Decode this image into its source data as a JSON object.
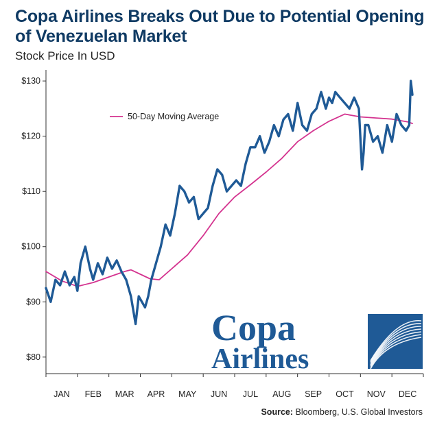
{
  "chart_data": {
    "type": "line",
    "title": "Copa Airlines Breaks Out Due to Potential Opening of Venezuelan Market",
    "subtitle": "Stock Price In USD",
    "ylim": [
      77,
      132
    ],
    "yticks": [
      80,
      90,
      100,
      110,
      120,
      130
    ],
    "ytick_labels": [
      "$80",
      "$90",
      "$100",
      "$110",
      "$120",
      "$130"
    ],
    "months": [
      "JAN",
      "FEB",
      "MAR",
      "APR",
      "MAY",
      "JUN",
      "JUL",
      "AUG",
      "SEP",
      "OCT",
      "NOV",
      "DEC"
    ],
    "legend": {
      "label": "50-Day Moving Average",
      "position": "top-left"
    },
    "series": [
      {
        "name": "",
        "role": "price",
        "color": "#1f5a96",
        "x": [
          0,
          0.15,
          0.3,
          0.45,
          0.6,
          0.75,
          0.9,
          1.0,
          1.1,
          1.25,
          1.4,
          1.5,
          1.65,
          1.8,
          1.95,
          2.1,
          2.25,
          2.4,
          2.55,
          2.7,
          2.85,
          2.95,
          3.05,
          3.15,
          3.25,
          3.35,
          3.5,
          3.65,
          3.8,
          3.95,
          4.1,
          4.25,
          4.4,
          4.55,
          4.7,
          4.85,
          5.0,
          5.15,
          5.3,
          5.45,
          5.6,
          5.75,
          5.9,
          6.05,
          6.2,
          6.35,
          6.5,
          6.65,
          6.8,
          6.95,
          7.1,
          7.25,
          7.4,
          7.55,
          7.7,
          7.85,
          8.0,
          8.15,
          8.3,
          8.45,
          8.6,
          8.75,
          8.9,
          9.0,
          9.1,
          9.2,
          9.35,
          9.5,
          9.65,
          9.8,
          9.95,
          10.05,
          10.1,
          10.15,
          10.25,
          10.4,
          10.55,
          10.7,
          10.85,
          11.0,
          11.15,
          11.3,
          11.45,
          11.55,
          11.6,
          11.65
        ],
        "y": [
          92.5,
          90,
          94,
          93,
          95.5,
          93,
          94.5,
          92,
          97,
          100,
          96,
          94,
          97,
          95,
          98,
          96,
          97.5,
          95.5,
          94,
          91,
          86,
          91,
          90,
          89,
          91,
          94,
          97,
          100,
          104,
          102,
          106,
          111,
          110,
          108,
          109,
          105,
          106,
          107,
          111,
          114,
          113,
          110,
          111,
          112,
          111,
          115,
          118,
          118,
          120,
          117,
          119,
          122,
          120,
          123,
          124,
          121,
          126,
          122,
          121,
          124,
          125,
          128,
          125,
          127,
          126,
          128,
          127,
          126,
          125,
          127,
          125,
          114,
          117,
          122,
          122,
          119,
          120,
          117,
          122,
          119,
          124,
          122,
          121,
          122,
          130,
          127.5
        ]
      },
      {
        "name": "50-Day Moving Average",
        "role": "moving-average",
        "color": "#d4338f",
        "x": [
          0,
          0.5,
          1.0,
          1.5,
          2.0,
          2.5,
          2.7,
          3.0,
          3.3,
          3.6,
          4.0,
          4.5,
          5.0,
          5.5,
          6.0,
          6.5,
          7.0,
          7.5,
          8.0,
          8.5,
          9.0,
          9.5,
          10.0,
          10.5,
          11.0,
          11.5,
          11.65
        ],
        "y": [
          95.5,
          93.8,
          92.8,
          93.5,
          94.5,
          95.5,
          95.8,
          95,
          94.2,
          94,
          96,
          98.5,
          102,
          106,
          109,
          111.2,
          113.5,
          116,
          119,
          121,
          122.7,
          124,
          123.5,
          123.3,
          123.1,
          122.6,
          122.3
        ]
      }
    ]
  },
  "source": {
    "label": "Source:",
    "text": " Bloomberg, U.S. Global Investors"
  },
  "logo": {
    "line1": "Copa",
    "line2": "Airlines",
    "color": "#1f5a96"
  }
}
